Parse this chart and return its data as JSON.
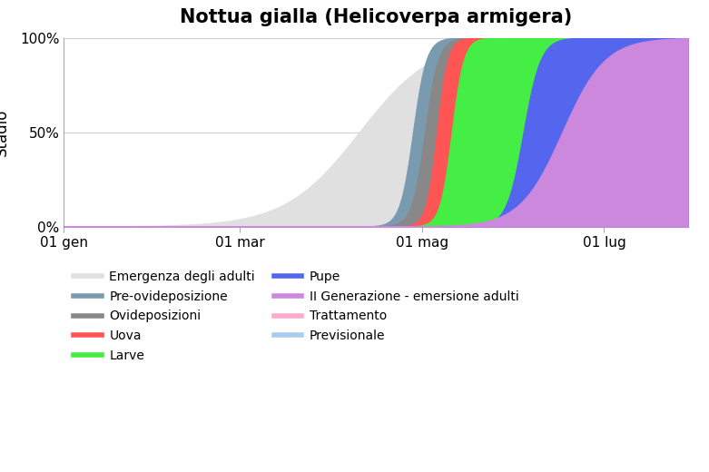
{
  "title": "Nottua gialla (Helicoverpa armigera)",
  "ylabel": "Stadio",
  "yticks": [
    0,
    0.5,
    1.0
  ],
  "ytick_labels": [
    "0%",
    "50%",
    "100%"
  ],
  "xtick_labels": [
    "01 gen",
    "01 mar",
    "01 mag",
    "01 lug"
  ],
  "xtick_days": [
    1,
    60,
    121,
    182
  ],
  "background_color": "#ffffff",
  "plot_bg_color": "#ffffff",
  "grid_color": "#d0d0d0",
  "curves": [
    {
      "label": "Emergenza degli adulti",
      "fill_color": "#e0e0e0",
      "line_color": "#c8c8c8",
      "midpoint": 100,
      "steepness": 0.08
    },
    {
      "label": "Pre-ovideposizione",
      "fill_color": "#7a9ab0",
      "line_color": "#6080a0",
      "midpoint": 118,
      "steepness": 0.45
    },
    {
      "label": "Ovideposizioni",
      "fill_color": "#888888",
      "line_color": "#666666",
      "midpoint": 122,
      "steepness": 0.45
    },
    {
      "label": "Uova",
      "fill_color": "#ff5555",
      "line_color": "#ee0000",
      "midpoint": 126,
      "steepness": 0.55
    },
    {
      "label": "Larve",
      "fill_color": "#44ee44",
      "line_color": "#22cc22",
      "midpoint": 131,
      "steepness": 0.5
    },
    {
      "label": "Pupe",
      "fill_color": "#5566ee",
      "line_color": "#2244cc",
      "midpoint": 155,
      "steepness": 0.35
    },
    {
      "label": "II Generazione - emersione adulti",
      "fill_color": "#cc88dd",
      "line_color": "#aa66bb",
      "midpoint": 168,
      "steepness": 0.14
    }
  ],
  "legend_items": [
    {
      "label": "Emergenza degli adulti",
      "color": "#e0e0e0",
      "style": "line"
    },
    {
      "label": "Pre-ovideposizione",
      "color": "#7a9ab0",
      "style": "line"
    },
    {
      "label": "Ovideposizioni",
      "color": "#888888",
      "style": "line"
    },
    {
      "label": "Uova",
      "color": "#ff5555",
      "style": "line"
    },
    {
      "label": "Larve",
      "color": "#44ee44",
      "style": "line"
    },
    {
      "label": "Pupe",
      "color": "#5566ee",
      "style": "line"
    },
    {
      "label": "II Generazione - emersione adulti",
      "color": "#cc88dd",
      "style": "line"
    },
    {
      "label": "Trattamento",
      "color": "#ffaacc",
      "style": "line"
    },
    {
      "label": "Previsionale",
      "color": "#aaccee",
      "style": "line"
    }
  ]
}
